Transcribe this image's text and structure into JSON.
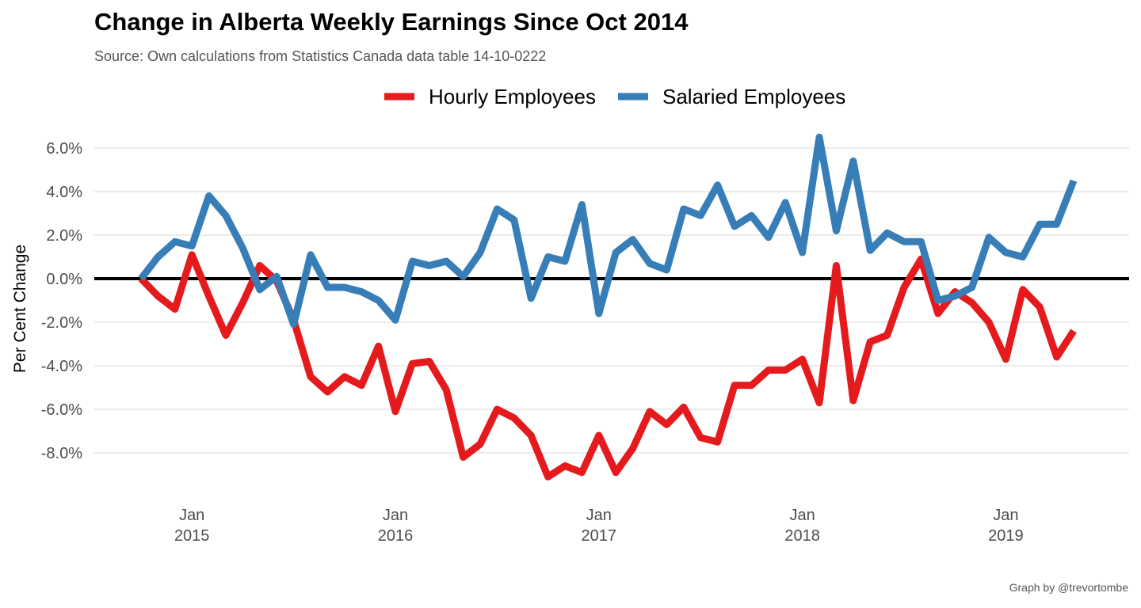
{
  "chart_data": {
    "type": "line",
    "title": "Change in Alberta Weekly Earnings Since Oct 2014",
    "subtitle": "Source: Own calculations from Statistics Canada data table 14-10-0222",
    "caption": "Graph by @trevortombe",
    "ylabel": "Per Cent Change",
    "xlabel": "",
    "ylim": [
      -9.5,
      6.5
    ],
    "y_ticks": [
      "6.0%",
      "4.0%",
      "2.0%",
      "0.0%",
      "-2.0%",
      "-4.0%",
      "-6.0%",
      "-8.0%"
    ],
    "x_ticks": [
      {
        "month": "Jan",
        "year": "2015"
      },
      {
        "month": "Jan",
        "year": "2016"
      },
      {
        "month": "Jan",
        "year": "2017"
      },
      {
        "month": "Jan",
        "year": "2018"
      },
      {
        "month": "Jan",
        "year": "2019"
      }
    ],
    "zero_line": true,
    "grid": true,
    "legend_position": "top",
    "start_month": "2014-10",
    "series": [
      {
        "name": "Hourly Employees",
        "color": "#e41a1c",
        "values": [
          0.0,
          -0.8,
          -1.4,
          1.1,
          -0.8,
          -2.6,
          -1.1,
          0.6,
          -0.1,
          -1.9,
          -4.5,
          -5.2,
          -4.5,
          -4.9,
          -3.1,
          -6.1,
          -3.9,
          -3.8,
          -5.1,
          -8.2,
          -7.6,
          -6.0,
          -6.4,
          -7.2,
          -9.1,
          -8.6,
          -8.9,
          -7.2,
          -8.9,
          -7.8,
          -6.1,
          -6.7,
          -5.9,
          -7.3,
          -7.5,
          -4.9,
          -4.9,
          -4.2,
          -4.2,
          -3.7,
          -5.7,
          0.6,
          -5.6,
          -2.9,
          -2.6,
          -0.4,
          0.9,
          -1.6,
          -0.6,
          -1.1,
          -2.0,
          -3.7,
          -0.5,
          -1.3,
          -3.6,
          -2.4
        ]
      },
      {
        "name": "Salaried Employees",
        "color": "#377eb8",
        "values": [
          0.0,
          1.0,
          1.7,
          1.5,
          3.8,
          2.9,
          1.4,
          -0.5,
          0.1,
          -2.1,
          1.1,
          -0.4,
          -0.4,
          -0.6,
          -1.0,
          -1.9,
          0.8,
          0.6,
          0.8,
          0.1,
          1.2,
          3.2,
          2.7,
          -0.9,
          1.0,
          0.8,
          3.4,
          -1.6,
          1.2,
          1.8,
          0.7,
          0.4,
          3.2,
          2.9,
          4.3,
          2.4,
          2.9,
          1.9,
          3.5,
          1.2,
          6.5,
          2.2,
          5.4,
          1.3,
          2.1,
          1.7,
          1.7,
          -1.0,
          -0.8,
          -0.4,
          1.9,
          1.2,
          1.0,
          2.5,
          2.5,
          4.5
        ]
      }
    ]
  }
}
